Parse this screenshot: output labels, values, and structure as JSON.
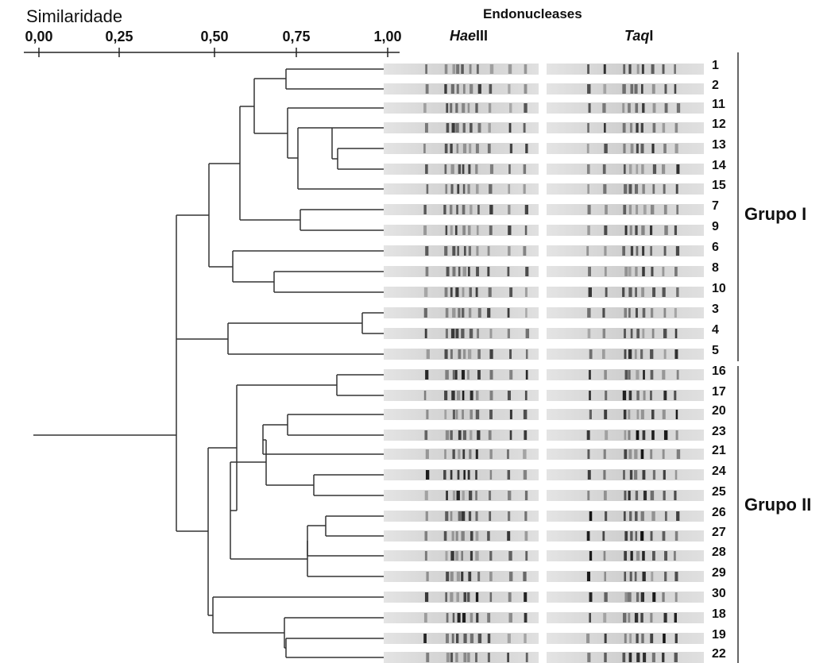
{
  "header": {
    "similarity_title": "Similaridade",
    "endonucleases_title": "Endonucleases",
    "haeiii_italic": "Hae",
    "haeiii_rest": "III",
    "taqi_italic": "Taq",
    "taqi_rest": "I"
  },
  "scale": {
    "ticks": [
      "0,00",
      "0,25",
      "0,50",
      "0,75",
      "1,00"
    ]
  },
  "groups": {
    "group1": "Grupo I",
    "group2": "Grupo II"
  },
  "lanes": [
    "1",
    "2",
    "11",
    "12",
    "13",
    "14",
    "15",
    "7",
    "9",
    "6",
    "8",
    "10",
    "3",
    "4",
    "5",
    "16",
    "17",
    "20",
    "23",
    "21",
    "24",
    "25",
    "26",
    "27",
    "28",
    "29",
    "30",
    "18",
    "19",
    "22"
  ]
}
